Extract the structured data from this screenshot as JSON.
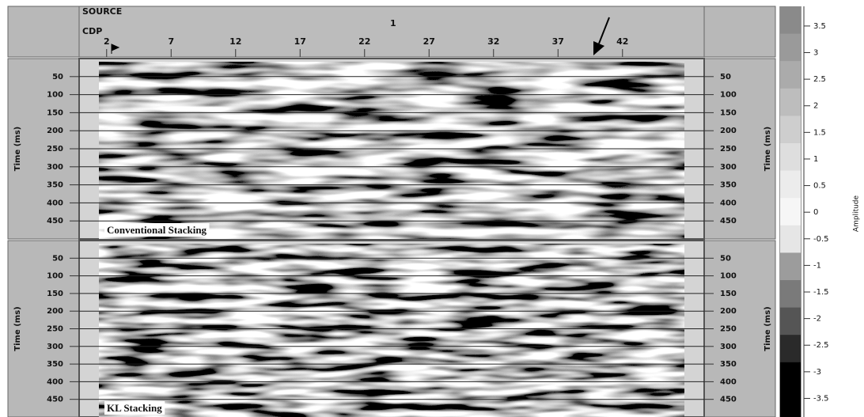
{
  "header": {
    "source_label": "SOURCE",
    "source_value": "1",
    "cdp_label": "CDP"
  },
  "chart_data": [
    {
      "type": "seismic",
      "label": "Conventional Stacking",
      "y_label": "Time (ms)",
      "ylim": [
        0,
        500
      ],
      "yticks": [
        50,
        100,
        150,
        200,
        250,
        300,
        350,
        400,
        450
      ],
      "xlim": [
        1.4,
        46.8
      ],
      "xticks": [
        2,
        7,
        12,
        17,
        22,
        27,
        32,
        37,
        42
      ],
      "grid": true
    },
    {
      "type": "seismic",
      "label": "KL Stacking",
      "y_label": "Time (ms)",
      "ylim": [
        0,
        500
      ],
      "yticks": [
        50,
        100,
        150,
        200,
        250,
        300,
        350,
        400,
        450
      ],
      "xlim": [
        1.4,
        46.8
      ],
      "xticks": [
        2,
        7,
        12,
        17,
        22,
        27,
        32,
        37,
        42
      ],
      "grid": true
    }
  ],
  "colorbar": {
    "label": "Amplitude",
    "lim": [
      -3.85,
      3.87
    ],
    "ticks": [
      3.5,
      3,
      2.5,
      2,
      1.5,
      1,
      0.5,
      0,
      -0.5,
      -1,
      -1.5,
      -2,
      -2.5,
      -3,
      -3.5
    ]
  }
}
